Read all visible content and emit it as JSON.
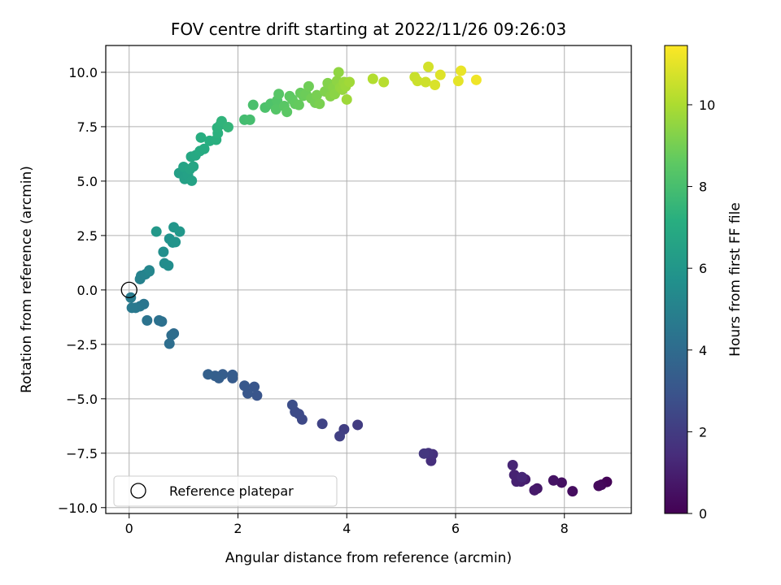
{
  "chart_data": {
    "type": "scatter",
    "title": "FOV centre drift starting at 2022/11/26 09:26:03",
    "xlabel": "Angular distance from reference (arcmin)",
    "ylabel": "Rotation from reference (arcmin)",
    "xlim": [
      -0.43,
      9.23
    ],
    "ylim": [
      -10.27,
      11.23
    ],
    "x_ticks": [
      {
        "v": 0,
        "label": "0"
      },
      {
        "v": 2,
        "label": "2"
      },
      {
        "v": 4,
        "label": "4"
      },
      {
        "v": 6,
        "label": "6"
      },
      {
        "v": 8,
        "label": "8"
      }
    ],
    "y_ticks": [
      {
        "v": 10,
        "label": "10.0"
      },
      {
        "v": 7.5,
        "label": "7.5"
      },
      {
        "v": 5,
        "label": "5.0"
      },
      {
        "v": 2.5,
        "label": "2.5"
      },
      {
        "v": 0,
        "label": "0.0"
      },
      {
        "v": -2.5,
        "label": "−2.5"
      },
      {
        "v": -5,
        "label": "−5.0"
      },
      {
        "v": -7.5,
        "label": "−7.5"
      },
      {
        "v": -10,
        "label": "−10.0"
      }
    ],
    "grid": true,
    "colormap": "viridis",
    "colorbar": {
      "label": "Hours from first FF file",
      "range": [
        0,
        11.45
      ],
      "ticks": [
        {
          "v": 0,
          "label": "0"
        },
        {
          "v": 2,
          "label": "2"
        },
        {
          "v": 4,
          "label": "4"
        },
        {
          "v": 6,
          "label": "6"
        },
        {
          "v": 8,
          "label": "8"
        },
        {
          "v": 10,
          "label": "10"
        }
      ]
    },
    "reference_point": {
      "x": 0.0,
      "y": 0.0
    },
    "legend": {
      "position": "lower-left",
      "entries": [
        "Reference platepar"
      ]
    },
    "points": [
      {
        "x": 8.78,
        "y": -8.82,
        "t": 0.1
      },
      {
        "x": 8.68,
        "y": -8.95,
        "t": 0.2
      },
      {
        "x": 8.63,
        "y": -9.0,
        "t": 0.3
      },
      {
        "x": 8.15,
        "y": -9.25,
        "t": 0.4
      },
      {
        "x": 7.95,
        "y": -8.85,
        "t": 0.5
      },
      {
        "x": 7.8,
        "y": -8.75,
        "t": 0.6
      },
      {
        "x": 7.5,
        "y": -9.12,
        "t": 0.7
      },
      {
        "x": 7.45,
        "y": -9.2,
        "t": 0.8
      },
      {
        "x": 7.28,
        "y": -8.7,
        "t": 0.9
      },
      {
        "x": 7.2,
        "y": -8.8,
        "t": 1.0
      },
      {
        "x": 7.12,
        "y": -8.8,
        "t": 1.05
      },
      {
        "x": 7.08,
        "y": -8.5,
        "t": 1.1
      },
      {
        "x": 7.05,
        "y": -8.05,
        "t": 1.2
      },
      {
        "x": 7.22,
        "y": -8.6,
        "t": 1.25
      },
      {
        "x": 5.55,
        "y": -7.85,
        "t": 1.5
      },
      {
        "x": 5.58,
        "y": -7.55,
        "t": 1.6
      },
      {
        "x": 5.5,
        "y": -7.5,
        "t": 1.7
      },
      {
        "x": 5.42,
        "y": -7.52,
        "t": 1.8
      },
      {
        "x": 4.2,
        "y": -6.2,
        "t": 2.0
      },
      {
        "x": 3.95,
        "y": -6.4,
        "t": 2.1
      },
      {
        "x": 3.87,
        "y": -6.72,
        "t": 2.15
      },
      {
        "x": 3.55,
        "y": -6.15,
        "t": 2.3
      },
      {
        "x": 3.18,
        "y": -5.95,
        "t": 2.5
      },
      {
        "x": 3.12,
        "y": -5.7,
        "t": 2.55
      },
      {
        "x": 3.05,
        "y": -5.6,
        "t": 2.6
      },
      {
        "x": 3.0,
        "y": -5.28,
        "t": 2.7
      },
      {
        "x": 2.35,
        "y": -4.85,
        "t": 3.0
      },
      {
        "x": 2.3,
        "y": -4.45,
        "t": 3.05
      },
      {
        "x": 2.18,
        "y": -4.75,
        "t": 3.1
      },
      {
        "x": 2.12,
        "y": -4.4,
        "t": 3.15
      },
      {
        "x": 1.9,
        "y": -4.05,
        "t": 3.25
      },
      {
        "x": 1.9,
        "y": -3.9,
        "t": 3.3
      },
      {
        "x": 1.72,
        "y": -3.88,
        "t": 3.35
      },
      {
        "x": 1.65,
        "y": -4.05,
        "t": 3.4
      },
      {
        "x": 1.58,
        "y": -3.95,
        "t": 3.45
      },
      {
        "x": 1.45,
        "y": -3.88,
        "t": 3.5
      },
      {
        "x": 0.82,
        "y": -2.0,
        "t": 4.0
      },
      {
        "x": 0.78,
        "y": -2.08,
        "t": 4.05
      },
      {
        "x": 0.74,
        "y": -2.47,
        "t": 4.1
      },
      {
        "x": 0.6,
        "y": -1.45,
        "t": 4.2
      },
      {
        "x": 0.55,
        "y": -1.4,
        "t": 4.25
      },
      {
        "x": 0.33,
        "y": -1.4,
        "t": 4.35
      },
      {
        "x": 0.27,
        "y": -0.65,
        "t": 4.45
      },
      {
        "x": 0.2,
        "y": -0.75,
        "t": 4.5
      },
      {
        "x": 0.12,
        "y": -0.82,
        "t": 4.55
      },
      {
        "x": 0.05,
        "y": -0.82,
        "t": 4.6
      },
      {
        "x": 0.03,
        "y": -0.35,
        "t": 4.7
      },
      {
        "x": 0.2,
        "y": 0.5,
        "t": 5.0
      },
      {
        "x": 0.22,
        "y": 0.65,
        "t": 5.05
      },
      {
        "x": 0.3,
        "y": 0.72,
        "t": 5.1
      },
      {
        "x": 0.37,
        "y": 0.85,
        "t": 5.15
      },
      {
        "x": 0.37,
        "y": 0.9,
        "t": 5.2
      },
      {
        "x": 0.65,
        "y": 1.22,
        "t": 5.5
      },
      {
        "x": 0.72,
        "y": 1.12,
        "t": 5.55
      },
      {
        "x": 0.63,
        "y": 1.75,
        "t": 5.65
      },
      {
        "x": 0.74,
        "y": 2.35,
        "t": 5.75
      },
      {
        "x": 0.8,
        "y": 2.18,
        "t": 5.8
      },
      {
        "x": 0.85,
        "y": 2.2,
        "t": 5.85
      },
      {
        "x": 0.82,
        "y": 2.88,
        "t": 5.95
      },
      {
        "x": 0.93,
        "y": 2.68,
        "t": 6.0
      },
      {
        "x": 0.5,
        "y": 2.68,
        "t": 6.05
      },
      {
        "x": 0.92,
        "y": 5.37,
        "t": 6.4
      },
      {
        "x": 1.02,
        "y": 5.1,
        "t": 6.45
      },
      {
        "x": 1.08,
        "y": 5.28,
        "t": 6.5
      },
      {
        "x": 1.15,
        "y": 5.02,
        "t": 6.55
      },
      {
        "x": 1.0,
        "y": 5.65,
        "t": 6.6
      },
      {
        "x": 1.12,
        "y": 5.55,
        "t": 6.65
      },
      {
        "x": 1.18,
        "y": 5.67,
        "t": 6.7
      },
      {
        "x": 1.14,
        "y": 6.12,
        "t": 6.8
      },
      {
        "x": 1.22,
        "y": 6.18,
        "t": 6.85
      },
      {
        "x": 1.3,
        "y": 6.38,
        "t": 6.95
      },
      {
        "x": 1.38,
        "y": 6.48,
        "t": 7.0
      },
      {
        "x": 1.32,
        "y": 7.0,
        "t": 7.1
      },
      {
        "x": 1.48,
        "y": 6.85,
        "t": 7.15
      },
      {
        "x": 1.6,
        "y": 6.9,
        "t": 7.2
      },
      {
        "x": 1.63,
        "y": 7.2,
        "t": 7.25
      },
      {
        "x": 1.62,
        "y": 7.45,
        "t": 7.3
      },
      {
        "x": 1.68,
        "y": 7.6,
        "t": 7.35
      },
      {
        "x": 1.7,
        "y": 7.75,
        "t": 7.4
      },
      {
        "x": 1.82,
        "y": 7.48,
        "t": 7.5
      },
      {
        "x": 2.12,
        "y": 7.82,
        "t": 7.9
      },
      {
        "x": 2.22,
        "y": 7.82,
        "t": 7.95
      },
      {
        "x": 2.28,
        "y": 8.5,
        "t": 8.05
      },
      {
        "x": 2.5,
        "y": 8.38,
        "t": 8.15
      },
      {
        "x": 2.6,
        "y": 8.55,
        "t": 8.2
      },
      {
        "x": 2.72,
        "y": 8.7,
        "t": 8.3
      },
      {
        "x": 2.7,
        "y": 8.3,
        "t": 8.35
      },
      {
        "x": 2.75,
        "y": 9.0,
        "t": 8.4
      },
      {
        "x": 2.85,
        "y": 8.45,
        "t": 8.45
      },
      {
        "x": 2.9,
        "y": 8.18,
        "t": 8.5
      },
      {
        "x": 2.95,
        "y": 8.9,
        "t": 8.55
      },
      {
        "x": 3.0,
        "y": 8.75,
        "t": 8.6
      },
      {
        "x": 3.05,
        "y": 8.55,
        "t": 8.65
      },
      {
        "x": 3.12,
        "y": 8.5,
        "t": 8.7
      },
      {
        "x": 3.15,
        "y": 9.05,
        "t": 8.75
      },
      {
        "x": 3.2,
        "y": 8.92,
        "t": 8.8
      },
      {
        "x": 3.25,
        "y": 9.0,
        "t": 8.85
      },
      {
        "x": 3.3,
        "y": 9.35,
        "t": 8.9
      },
      {
        "x": 3.35,
        "y": 8.8,
        "t": 8.95
      },
      {
        "x": 3.42,
        "y": 8.6,
        "t": 9.0
      },
      {
        "x": 3.45,
        "y": 8.95,
        "t": 9.05
      },
      {
        "x": 3.5,
        "y": 8.55,
        "t": 9.1
      },
      {
        "x": 3.6,
        "y": 9.12,
        "t": 9.2
      },
      {
        "x": 3.65,
        "y": 9.5,
        "t": 9.25
      },
      {
        "x": 3.7,
        "y": 8.9,
        "t": 9.3
      },
      {
        "x": 3.75,
        "y": 9.3,
        "t": 9.35
      },
      {
        "x": 3.78,
        "y": 9.0,
        "t": 9.4
      },
      {
        "x": 3.82,
        "y": 9.6,
        "t": 9.45
      },
      {
        "x": 3.85,
        "y": 10.0,
        "t": 9.5
      },
      {
        "x": 3.88,
        "y": 9.3,
        "t": 9.55
      },
      {
        "x": 3.92,
        "y": 9.2,
        "t": 9.6
      },
      {
        "x": 3.95,
        "y": 9.55,
        "t": 9.65
      },
      {
        "x": 3.98,
        "y": 9.35,
        "t": 9.7
      },
      {
        "x": 4.0,
        "y": 8.75,
        "t": 9.75
      },
      {
        "x": 4.05,
        "y": 9.55,
        "t": 9.8
      },
      {
        "x": 4.48,
        "y": 9.7,
        "t": 10.1
      },
      {
        "x": 4.68,
        "y": 9.55,
        "t": 10.2
      },
      {
        "x": 5.25,
        "y": 9.78,
        "t": 10.5
      },
      {
        "x": 5.3,
        "y": 9.6,
        "t": 10.55
      },
      {
        "x": 5.45,
        "y": 9.55,
        "t": 10.6
      },
      {
        "x": 5.5,
        "y": 10.25,
        "t": 10.7
      },
      {
        "x": 5.62,
        "y": 9.42,
        "t": 10.8
      },
      {
        "x": 5.72,
        "y": 9.88,
        "t": 10.9
      },
      {
        "x": 6.05,
        "y": 9.6,
        "t": 11.0
      },
      {
        "x": 6.1,
        "y": 10.07,
        "t": 11.1
      },
      {
        "x": 6.38,
        "y": 9.65,
        "t": 11.2
      }
    ]
  }
}
